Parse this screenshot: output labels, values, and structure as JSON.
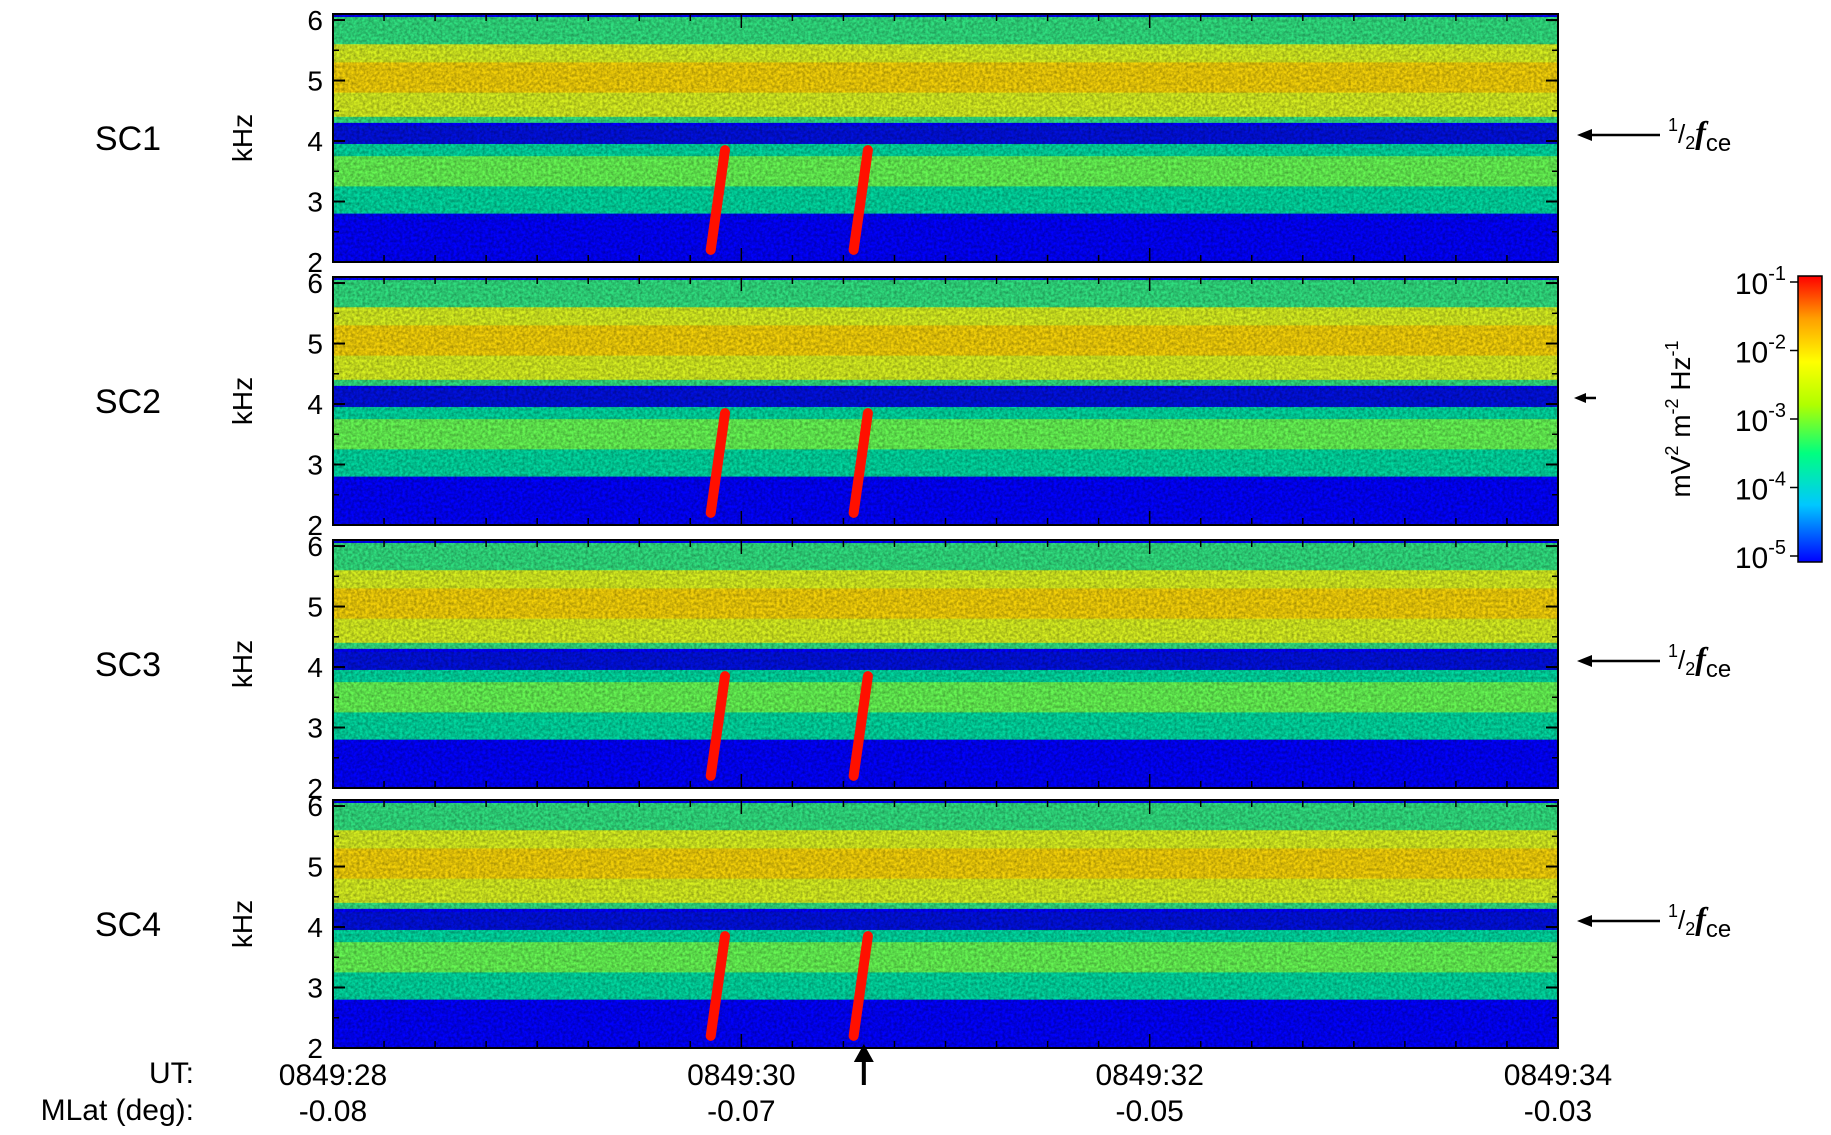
{
  "chart_data": {
    "type": "heatmap",
    "title": "",
    "panels": [
      {
        "name": "SC1",
        "fce_marker": true
      },
      {
        "name": "SC2",
        "fce_marker": false
      },
      {
        "name": "SC3",
        "fce_marker": true
      },
      {
        "name": "SC4",
        "fce_marker": true
      }
    ],
    "ylabel": "kHz",
    "ylim": [
      2,
      6.1
    ],
    "y_ticks": [
      "2",
      "3",
      "4",
      "5",
      "6"
    ],
    "x_ticks_ut": [
      "0849:28",
      "0849:30",
      "0849:32",
      "0849:34"
    ],
    "x_ticks_mlat": [
      "-0.08",
      "-0.07",
      "-0.05",
      "-0.03"
    ],
    "x_range_seconds": [
      28,
      34
    ],
    "row_labels": {
      "ut": "UT:",
      "mlat": "MLat (deg):"
    },
    "fce_label": {
      "base": "2",
      "sup": "1",
      "sub": "2",
      "f": "f",
      "ce": "ce"
    },
    "colorbar": {
      "label_parts": [
        "mV",
        "2",
        " m",
        "-2",
        " Hz",
        "-1"
      ],
      "tick_base": "10",
      "tick_exponents": [
        "-1",
        "-2",
        "-3",
        "-4",
        "-5"
      ],
      "colors": [
        "#0000ff",
        "#00c8ff",
        "#00ff80",
        "#b0ff00",
        "#ffff00",
        "#ffa000",
        "#ff0000"
      ]
    },
    "features": {
      "chorus_bands": [
        {
          "name": "upper band",
          "freq_khz": [
            4.4,
            5.6
          ]
        },
        {
          "name": "lower band",
          "freq_khz": [
            2.8,
            4.0
          ]
        }
      ],
      "half_fce_gap_khz": 4.1,
      "rising_tones_seconds": [
        29.9,
        30.6
      ],
      "event_marker_seconds": 30.6
    }
  }
}
